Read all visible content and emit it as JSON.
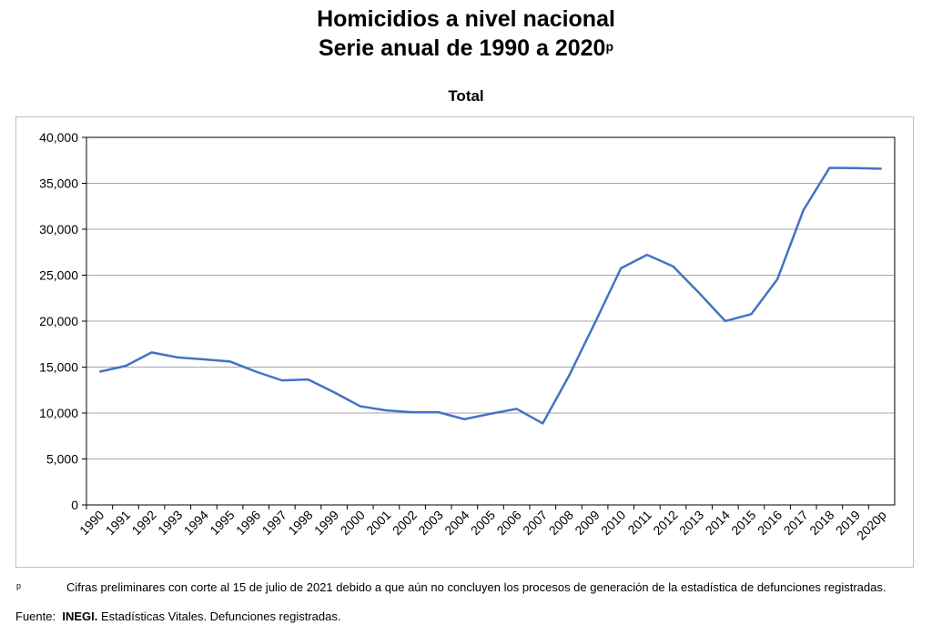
{
  "title_line1": "Homicidios a nivel nacional",
  "title_line2": "Serie anual de 1990 a 2020",
  "title_sup": "p",
  "chart_data": {
    "type": "line",
    "title": "Total",
    "xlabel": "",
    "ylabel": "",
    "ylim": [
      0,
      40000
    ],
    "yticks": [
      "0",
      "5,000",
      "10,000",
      "15,000",
      "20,000",
      "25,000",
      "30,000",
      "35,000",
      "40,000"
    ],
    "grid": true,
    "categories": [
      "1990",
      "1991",
      "1992",
      "1993",
      "1994",
      "1995",
      "1996",
      "1997",
      "1998",
      "1999",
      "2000",
      "2001",
      "2002",
      "2003",
      "2004",
      "2005",
      "2006",
      "2007",
      "2008",
      "2009",
      "2010",
      "2011",
      "2012",
      "2013",
      "2014",
      "2015",
      "2016",
      "2017",
      "2018",
      "2019",
      "2020p"
    ],
    "series": [
      {
        "name": "Total",
        "color": "#4472c4",
        "values": [
          14493,
          15125,
          16594,
          16050,
          15839,
          15612,
          14505,
          13552,
          13656,
          12249,
          10737,
          10285,
          10088,
          10087,
          9329,
          9921,
          10452,
          8867,
          14006,
          19803,
          25757,
          27213,
          25967,
          23063,
          20010,
          20762,
          24559,
          32079,
          36685,
          36661,
          36579
        ]
      }
    ]
  },
  "footnote": {
    "marker": "p",
    "text": "Cifras preliminares con corte al 15 de julio de 2021 debido a que aún no concluyen los procesos de generación de la estadística de defunciones registradas.",
    "source_label": "Fuente:",
    "source_org": "INEGI.",
    "source_text": "Estadísticas Vitales. Defunciones registradas."
  }
}
